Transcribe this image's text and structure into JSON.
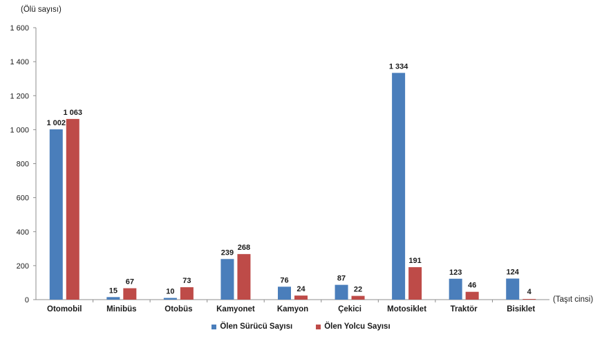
{
  "chart_data": {
    "type": "bar",
    "ylabel": "(Ölü sayısı)",
    "xlabel": "(Taşıt cinsi)",
    "ylim": [
      0,
      1600
    ],
    "yticks": [
      0,
      200,
      400,
      600,
      800,
      1000,
      1200,
      1400,
      1600
    ],
    "ytick_labels": [
      "0",
      "200",
      "400",
      "600",
      "800",
      "1 000",
      "1 200",
      "1 400",
      "1 600"
    ],
    "categories": [
      "Otomobil",
      "Minibüs",
      "Otobüs",
      "Kamyonet",
      "Kamyon",
      "Çekici",
      "Motosiklet",
      "Traktör",
      "Bisiklet"
    ],
    "series": [
      {
        "name": "Ölen Sürücü Sayısı",
        "color": "#4A7EBB",
        "values": [
          1002,
          15,
          10,
          239,
          76,
          87,
          1334,
          123,
          124
        ],
        "labels": [
          "1 002",
          "15",
          "10",
          "239",
          "76",
          "87",
          "1 334",
          "123",
          "124"
        ]
      },
      {
        "name": "Ölen Yolcu Sayısı",
        "color": "#BE4B48",
        "values": [
          1063,
          67,
          73,
          268,
          24,
          22,
          191,
          46,
          4
        ],
        "labels": [
          "1 063",
          "67",
          "73",
          "268",
          "24",
          "22",
          "191",
          "46",
          "4"
        ]
      }
    ],
    "grid": false,
    "legend_position": "bottom"
  }
}
